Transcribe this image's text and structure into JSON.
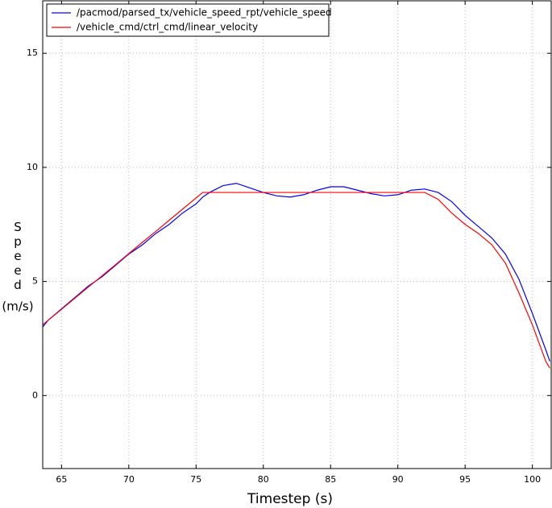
{
  "chart_data": {
    "type": "line",
    "xlabel": "Timestep (s)",
    "ylabel": "Speed",
    "ylabel_unit": "(m/s)",
    "x": [
      63.6,
      64,
      65,
      66,
      67,
      68,
      69,
      70,
      71,
      72,
      73,
      74,
      75,
      75.5,
      76,
      77,
      78,
      79,
      80,
      81,
      82,
      83,
      84,
      85,
      86,
      87,
      88,
      89,
      90,
      91,
      92,
      93,
      94,
      95,
      96,
      97,
      98,
      99,
      100,
      101,
      101.3
    ],
    "series": [
      {
        "name": "/pacmod/parsed_tx/vehicle_speed_rpt/vehicle_speed",
        "color": "#0000ff",
        "values": [
          3.0,
          3.3,
          3.8,
          4.3,
          4.8,
          5.2,
          5.7,
          6.2,
          6.6,
          7.1,
          7.5,
          8.0,
          8.4,
          8.7,
          8.9,
          9.2,
          9.3,
          9.1,
          8.9,
          8.75,
          8.7,
          8.8,
          9.0,
          9.15,
          9.15,
          9.0,
          8.85,
          8.75,
          8.8,
          9.0,
          9.05,
          8.9,
          8.5,
          7.9,
          7.4,
          6.9,
          6.2,
          5.1,
          3.6,
          2.0,
          1.5
        ]
      },
      {
        "name": "/vehicle_cmd/ctrl_cmd/linear_velocity",
        "color": "#ff0000",
        "values": [
          3.1,
          3.3,
          3.78,
          4.27,
          4.76,
          5.24,
          5.73,
          6.22,
          6.71,
          7.19,
          7.68,
          8.17,
          8.66,
          8.9,
          8.9,
          8.9,
          8.9,
          8.9,
          8.9,
          8.9,
          8.9,
          8.9,
          8.9,
          8.9,
          8.9,
          8.9,
          8.9,
          8.9,
          8.9,
          8.9,
          8.9,
          8.6,
          8.0,
          7.5,
          7.1,
          6.6,
          5.8,
          4.5,
          3.1,
          1.5,
          1.2
        ]
      }
    ],
    "xlim": [
      63.6,
      101.4
    ],
    "xticks": [
      65,
      70,
      75,
      80,
      85,
      90,
      95,
      100
    ],
    "ylim": [
      -3.2,
      17.3
    ],
    "yticks": [
      0,
      5,
      10,
      15
    ],
    "grid": true,
    "legend": "upper left"
  }
}
